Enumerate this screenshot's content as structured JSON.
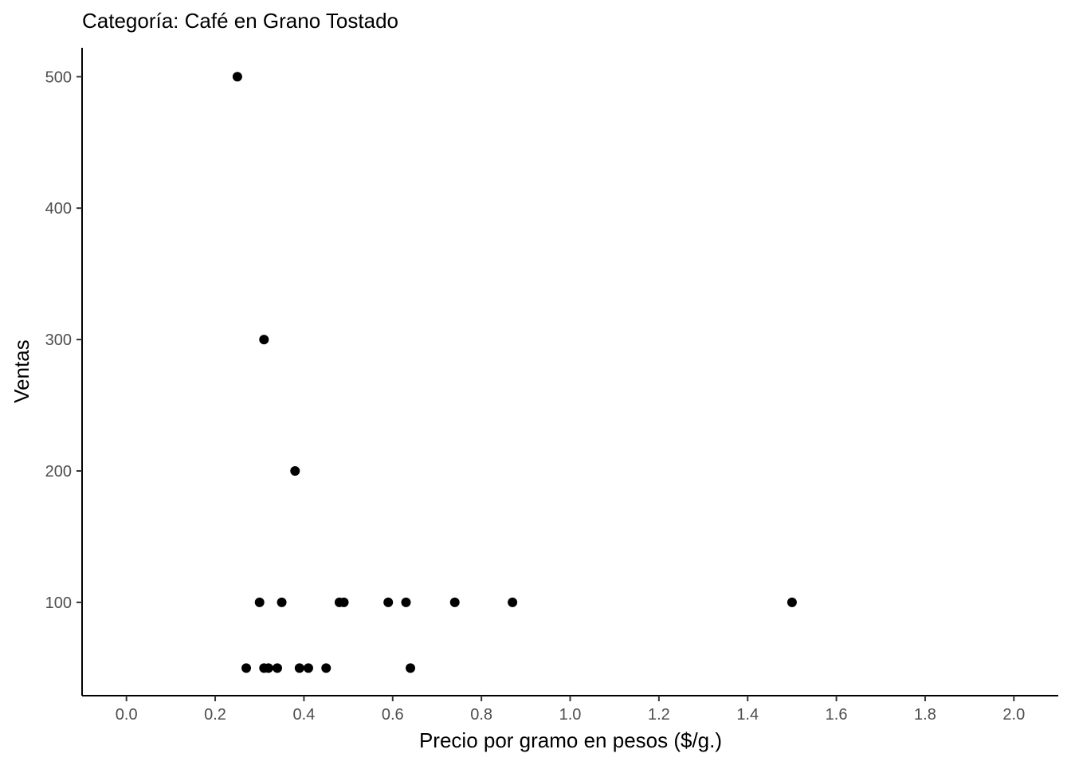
{
  "chart_data": {
    "type": "scatter",
    "title": "Categoría: Café en Grano Tostado",
    "xlabel": "Precio por gramo en pesos ($/g.)",
    "ylabel": "Ventas",
    "xlim": [
      -0.1,
      2.1
    ],
    "ylim": [
      29,
      522
    ],
    "x_ticks": [
      0.0,
      0.2,
      0.4,
      0.6,
      0.8,
      1.0,
      1.2,
      1.4,
      1.6,
      1.8,
      2.0
    ],
    "x_tick_labels": [
      "0.0",
      "0.2",
      "0.4",
      "0.6",
      "0.8",
      "1.0",
      "1.2",
      "1.4",
      "1.6",
      "1.8",
      "2.0"
    ],
    "y_ticks": [
      100,
      200,
      300,
      400,
      500
    ],
    "y_tick_labels": [
      "100",
      "200",
      "300",
      "400",
      "500"
    ],
    "grid": false,
    "point_color": "#000000",
    "points": [
      {
        "x": 0.25,
        "y": 500
      },
      {
        "x": 0.31,
        "y": 300
      },
      {
        "x": 0.38,
        "y": 200
      },
      {
        "x": 0.3,
        "y": 100
      },
      {
        "x": 0.35,
        "y": 100
      },
      {
        "x": 0.48,
        "y": 100
      },
      {
        "x": 0.49,
        "y": 100
      },
      {
        "x": 0.59,
        "y": 100
      },
      {
        "x": 0.63,
        "y": 100
      },
      {
        "x": 0.74,
        "y": 100
      },
      {
        "x": 0.87,
        "y": 100
      },
      {
        "x": 1.5,
        "y": 100
      },
      {
        "x": 0.27,
        "y": 50
      },
      {
        "x": 0.31,
        "y": 50
      },
      {
        "x": 0.32,
        "y": 50
      },
      {
        "x": 0.34,
        "y": 50
      },
      {
        "x": 0.39,
        "y": 50
      },
      {
        "x": 0.41,
        "y": 50
      },
      {
        "x": 0.45,
        "y": 50
      },
      {
        "x": 0.64,
        "y": 50
      }
    ]
  }
}
